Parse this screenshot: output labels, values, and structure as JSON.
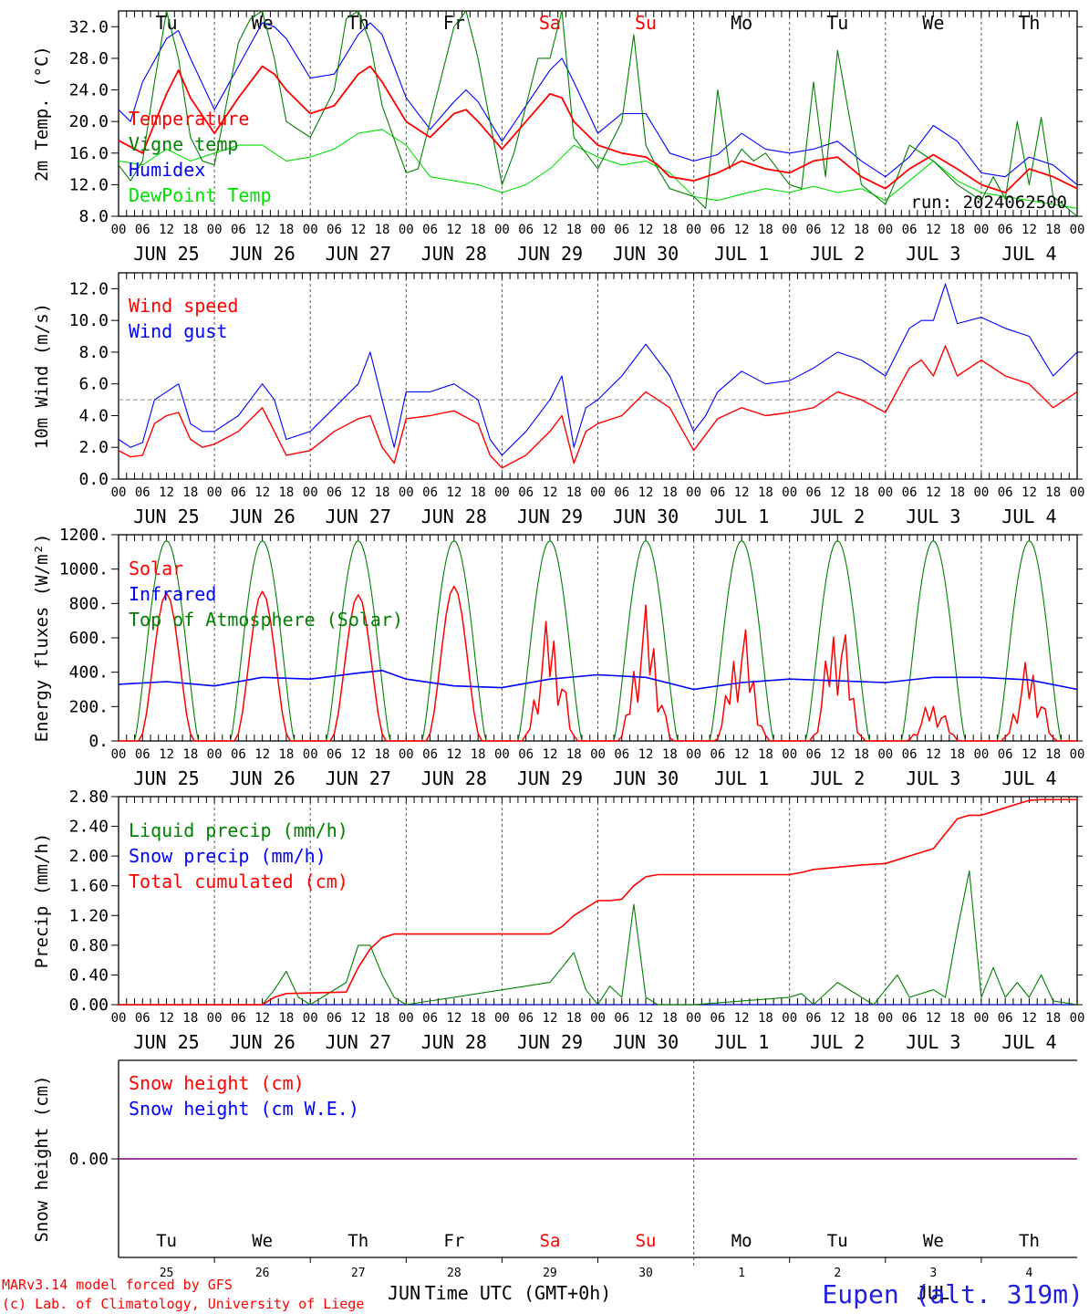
{
  "colors": {
    "temperature": "#ff0000",
    "vigne": "#008000",
    "humidex": "#0000ff",
    "dewpoint": "#00e000",
    "gust": "#0000ff",
    "speed": "#ff0000",
    "solar": "#ff0000",
    "infrared": "#0000ff",
    "toa": "#008000",
    "liquid": "#008000",
    "snow_precip": "#0000ff",
    "cumulated": "#ff0000",
    "snow_line": "#800080",
    "weekend": "#ff0000",
    "weekday": "#000000",
    "title": "#2020e0"
  },
  "days": {
    "names": [
      "Tu",
      "We",
      "Th",
      "Fr",
      "Sa",
      "Su",
      "Mo",
      "Tu",
      "We",
      "Th"
    ],
    "weekend": [
      false,
      false,
      false,
      false,
      true,
      true,
      false,
      false,
      false,
      false
    ],
    "dates": [
      "JUN 25",
      "JUN 26",
      "JUN 27",
      "JUN 28",
      "JUN 29",
      "JUN 30",
      "JUL  1",
      "JUL  2",
      "JUL  3",
      "JUL  4"
    ],
    "numbers": [
      "25",
      "26",
      "27",
      "28",
      "29",
      "30",
      "1",
      "2",
      "3",
      "4"
    ],
    "hour_labels": [
      "00",
      "06",
      "12",
      "18"
    ],
    "end_hour_label": "00"
  },
  "month_labels": {
    "left": "JUN",
    "right": "JUL"
  },
  "xlabel": "Time UTC (GMT+0h)",
  "station": "Eupen (alt. 319m)",
  "credit_1": "MARv3.14 model forced by GFS",
  "credit_2": "(c) Lab. of Climatology, University of Liege",
  "chart_data": [
    {
      "type": "line",
      "ylabel": "2m Temp. (°C)",
      "ylim": [
        8,
        34
      ],
      "yticks": [
        "8.0",
        "12.0",
        "16.0",
        "20.0",
        "24.0",
        "28.0",
        "32.0"
      ],
      "run_label": "run: 2024062500",
      "x_unit": "hours from JUN 25 00 UTC",
      "series": [
        {
          "name": "Temperature",
          "color_key": "temperature",
          "x": [
            0,
            6,
            12,
            15,
            18,
            24,
            30,
            36,
            39,
            42,
            48,
            54,
            60,
            63,
            66,
            72,
            78,
            84,
            87,
            90,
            96,
            102,
            108,
            111,
            114,
            120,
            126,
            132,
            135,
            138,
            144,
            150,
            156,
            162,
            168,
            174,
            180,
            186,
            192,
            198,
            204,
            210,
            216,
            222,
            228,
            234,
            240
          ],
          "y": [
            17.6,
            16,
            23.5,
            26.5,
            23,
            18.5,
            23,
            27,
            26,
            24,
            21,
            22,
            26,
            27,
            25,
            20,
            18,
            21,
            21.5,
            20,
            16.5,
            20,
            23.5,
            23,
            20,
            17,
            16,
            15.5,
            14.5,
            13,
            12.5,
            13.5,
            15,
            14,
            13.5,
            15,
            15.5,
            13,
            11.5,
            14,
            15.8,
            14,
            12,
            11,
            14,
            13,
            11.5
          ]
        },
        {
          "name": "Vigne temp",
          "color_key": "vigne",
          "x": [
            0,
            3,
            6,
            9,
            12,
            15,
            18,
            21,
            24,
            30,
            33,
            36,
            39,
            42,
            48,
            54,
            57,
            60,
            63,
            66,
            72,
            75,
            78,
            84,
            87,
            90,
            96,
            99,
            102,
            105,
            108,
            111,
            114,
            120,
            126,
            129,
            132,
            135,
            138,
            144,
            147,
            150,
            153,
            156,
            159,
            162,
            168,
            171,
            174,
            177,
            180,
            186,
            192,
            195,
            198,
            204,
            210,
            216,
            219,
            222,
            225,
            228,
            231,
            234,
            240
          ],
          "y": [
            14.5,
            12.5,
            15,
            25,
            34,
            28,
            18,
            15,
            14.5,
            30,
            33,
            34,
            28,
            20,
            18,
            24,
            33,
            34,
            30,
            22,
            13.5,
            14,
            20,
            32,
            34,
            28,
            12,
            16,
            22,
            28,
            28,
            34,
            18,
            14,
            20,
            31,
            17,
            14,
            11.5,
            10.5,
            9,
            24,
            14,
            16.5,
            15,
            16,
            12,
            11.5,
            25,
            13,
            29,
            12,
            9.5,
            13,
            17,
            15,
            12,
            10,
            13,
            10.2,
            20,
            12,
            20.5,
            10.5,
            8
          ]
        },
        {
          "name": "Humidex",
          "color_key": "humidex",
          "x": [
            0,
            3,
            6,
            12,
            15,
            18,
            24,
            30,
            36,
            39,
            42,
            48,
            54,
            60,
            63,
            66,
            72,
            78,
            84,
            87,
            90,
            96,
            102,
            108,
            111,
            114,
            120,
            126,
            132,
            135,
            138,
            144,
            150,
            156,
            162,
            168,
            174,
            180,
            186,
            192,
            198,
            204,
            210,
            216,
            222,
            228,
            234,
            240
          ],
          "y": [
            21.5,
            20,
            25,
            30.5,
            31.5,
            28,
            21.5,
            27,
            32.5,
            32,
            30.5,
            25.5,
            26,
            31,
            32.5,
            31,
            23,
            19,
            22.5,
            24,
            22.5,
            17.5,
            22,
            26.5,
            28,
            25,
            18.5,
            21,
            21,
            18.5,
            16,
            15,
            15.8,
            18.5,
            16.5,
            16,
            16.5,
            17.5,
            15,
            13,
            15.5,
            19.5,
            17.5,
            13.5,
            13,
            15.5,
            14.5,
            12
          ]
        },
        {
          "name": "DewPoint Temp",
          "color_key": "dewpoint",
          "x": [
            0,
            6,
            12,
            18,
            24,
            30,
            36,
            42,
            48,
            54,
            60,
            66,
            72,
            78,
            84,
            90,
            96,
            102,
            108,
            114,
            120,
            126,
            132,
            138,
            144,
            150,
            156,
            162,
            168,
            174,
            180,
            186,
            192,
            198,
            204,
            210,
            216,
            222,
            228,
            234,
            240
          ],
          "y": [
            15,
            14.5,
            16.5,
            15,
            16,
            17,
            17,
            15,
            15.5,
            16.5,
            18.5,
            19,
            17,
            13,
            12.5,
            12,
            11,
            12,
            14,
            17,
            15.5,
            14.5,
            15,
            13.5,
            10.5,
            10,
            10.8,
            11.5,
            11,
            11.8,
            11,
            11.5,
            10,
            12.5,
            15,
            12.5,
            11,
            10.5,
            10,
            9.5,
            9
          ]
        }
      ]
    },
    {
      "type": "line",
      "ylabel": "10m Wind (m/s)",
      "ylim": [
        0,
        13
      ],
      "yticks": [
        "0.0",
        "2.0",
        "4.0",
        "6.0",
        "8.0",
        "10.0",
        "12.0"
      ],
      "reference_line": 5,
      "x_unit": "hours from JUN 25 00 UTC",
      "series": [
        {
          "name": "Wind speed",
          "color_key": "speed",
          "x": [
            0,
            3,
            6,
            9,
            12,
            15,
            18,
            21,
            24,
            30,
            36,
            39,
            42,
            48,
            54,
            60,
            63,
            66,
            69,
            72,
            78,
            84,
            90,
            93,
            96,
            102,
            108,
            111,
            114,
            117,
            120,
            126,
            132,
            138,
            144,
            147,
            150,
            156,
            162,
            168,
            174,
            180,
            186,
            192,
            198,
            201,
            204,
            207,
            210,
            216,
            222,
            228,
            234,
            240
          ],
          "y": [
            1.8,
            1.4,
            1.5,
            3.5,
            4,
            4.2,
            2.5,
            2,
            2.2,
            3,
            4.5,
            3,
            1.5,
            1.8,
            3,
            3.8,
            4,
            2,
            1,
            3.8,
            4,
            4.3,
            3.5,
            1.5,
            0.7,
            1.5,
            3,
            4,
            1,
            3,
            3.5,
            4,
            5.5,
            4.5,
            1.8,
            2.8,
            3.8,
            4.5,
            4,
            4.2,
            4.5,
            5.5,
            5,
            4.2,
            7,
            7.5,
            6.5,
            8.4,
            6.5,
            7.5,
            6.5,
            6,
            4.5,
            5.5
          ]
        },
        {
          "name": "Wind gust",
          "color_key": "gust",
          "x": [
            0,
            3,
            6,
            9,
            12,
            15,
            18,
            21,
            24,
            30,
            36,
            39,
            42,
            48,
            54,
            60,
            63,
            66,
            69,
            72,
            78,
            84,
            90,
            93,
            96,
            102,
            108,
            111,
            114,
            117,
            120,
            126,
            132,
            138,
            144,
            147,
            150,
            156,
            162,
            168,
            174,
            180,
            186,
            192,
            198,
            201,
            204,
            207,
            210,
            216,
            222,
            228,
            234,
            240
          ],
          "y": [
            2.5,
            2,
            2.3,
            5,
            5.5,
            6,
            3.5,
            3,
            3,
            4,
            6,
            5,
            2.5,
            3,
            4.5,
            6,
            8,
            5,
            2,
            5.5,
            5.5,
            6,
            5,
            2.5,
            1.5,
            3,
            5,
            6.5,
            2,
            4.5,
            5,
            6.5,
            8.5,
            6.5,
            3,
            4,
            5.5,
            6.8,
            6,
            6.2,
            7,
            8,
            7.5,
            6.5,
            9.5,
            10,
            10,
            12.3,
            9.8,
            10.2,
            9.5,
            9,
            6.5,
            8
          ]
        }
      ]
    },
    {
      "type": "line",
      "ylabel": "Energy fluxes (W/m²)",
      "ylim": [
        0,
        1200
      ],
      "yticks": [
        "0.",
        "200.",
        "400.",
        "600.",
        "800.",
        "1000.",
        "1200."
      ],
      "x_unit": "hours from JUN 25 00 UTC",
      "toa_peak": 1165,
      "day_hours": [
        4,
        20
      ],
      "solar_peaks": [
        860,
        870,
        850,
        900,
        730,
        790,
        680,
        760,
        240,
        480
      ],
      "series": [
        {
          "name": "Solar",
          "color_key": "solar",
          "values": "daily bell curves scaled to solar_peaks"
        },
        {
          "name": "Infrared",
          "color_key": "infrared",
          "x": [
            0,
            12,
            24,
            36,
            48,
            60,
            66,
            72,
            84,
            96,
            108,
            120,
            132,
            144,
            156,
            168,
            180,
            192,
            204,
            216,
            228,
            240
          ],
          "y": [
            330,
            345,
            320,
            370,
            360,
            395,
            410,
            360,
            320,
            310,
            360,
            385,
            370,
            300,
            340,
            360,
            350,
            340,
            370,
            370,
            355,
            300
          ]
        },
        {
          "name": "Top of Atmosphere (Solar)",
          "color_key": "toa",
          "values": "daily bell curves peaking at toa_peak"
        }
      ]
    },
    {
      "type": "line",
      "ylabel": "Precip (mm/h)",
      "ylim": [
        0,
        2.8
      ],
      "yticks": [
        "0.00",
        "0.40",
        "0.80",
        "1.20",
        "1.60",
        "2.00",
        "2.40",
        "2.80"
      ],
      "x_unit": "hours from JUN 25 00 UTC",
      "series": [
        {
          "name": "Liquid precip (mm/h)",
          "color_key": "liquid",
          "x": [
            0,
            36,
            39,
            42,
            45,
            48,
            57,
            60,
            63,
            66,
            69,
            72,
            108,
            111,
            114,
            117,
            120,
            123,
            126,
            129,
            132,
            135,
            138,
            144,
            168,
            171,
            174,
            180,
            186,
            189,
            192,
            195,
            198,
            204,
            207,
            210,
            213,
            216,
            219,
            222,
            225,
            228,
            231,
            234,
            240
          ],
          "y": [
            0,
            0,
            0.2,
            0.45,
            0.1,
            0,
            0.3,
            0.8,
            0.8,
            0.4,
            0.1,
            0,
            0.3,
            0.5,
            0.7,
            0.2,
            0,
            0.25,
            0.1,
            1.35,
            0.1,
            0,
            0,
            0,
            0.1,
            0.15,
            0,
            0.3,
            0.1,
            0,
            0.2,
            0.4,
            0.1,
            0.2,
            0.1,
            1.0,
            1.8,
            0.1,
            0.5,
            0.1,
            0.3,
            0.1,
            0.4,
            0.05,
            0
          ]
        },
        {
          "name": "Snow precip (mm/h)",
          "color_key": "snow_precip",
          "x": [
            0,
            240
          ],
          "y": [
            0,
            0
          ]
        },
        {
          "name": "Total cumulated (cm)",
          "color_key": "cumulated",
          "x": [
            0,
            36,
            39,
            42,
            57,
            60,
            63,
            66,
            69,
            72,
            108,
            111,
            114,
            117,
            120,
            123,
            126,
            129,
            132,
            135,
            168,
            171,
            174,
            180,
            186,
            192,
            195,
            198,
            204,
            207,
            210,
            213,
            216,
            219,
            222,
            225,
            228,
            231,
            234,
            240
          ],
          "y": [
            0,
            0,
            0.1,
            0.15,
            0.17,
            0.5,
            0.75,
            0.9,
            0.95,
            0.95,
            0.95,
            1.05,
            1.2,
            1.3,
            1.4,
            1.4,
            1.42,
            1.6,
            1.72,
            1.75,
            1.75,
            1.78,
            1.82,
            1.85,
            1.88,
            1.9,
            1.95,
            2.0,
            2.1,
            2.3,
            2.5,
            2.55,
            2.55,
            2.6,
            2.65,
            2.7,
            2.75,
            2.76,
            2.76,
            2.76
          ]
        }
      ]
    },
    {
      "type": "line",
      "ylabel": "Snow height (cm)",
      "ylim": [
        -1,
        1
      ],
      "yticks": [
        "0.00"
      ],
      "x_unit": "hours from JUN 25 00 UTC",
      "series": [
        {
          "name": "Snow height (cm)",
          "color_key": "cumulated",
          "x": [
            0,
            240
          ],
          "y": [
            0,
            0
          ]
        },
        {
          "name": "Snow height (cm W.E.)",
          "color_key": "snow_precip",
          "x": [
            0,
            240
          ],
          "y": [
            0,
            0
          ]
        }
      ]
    }
  ]
}
